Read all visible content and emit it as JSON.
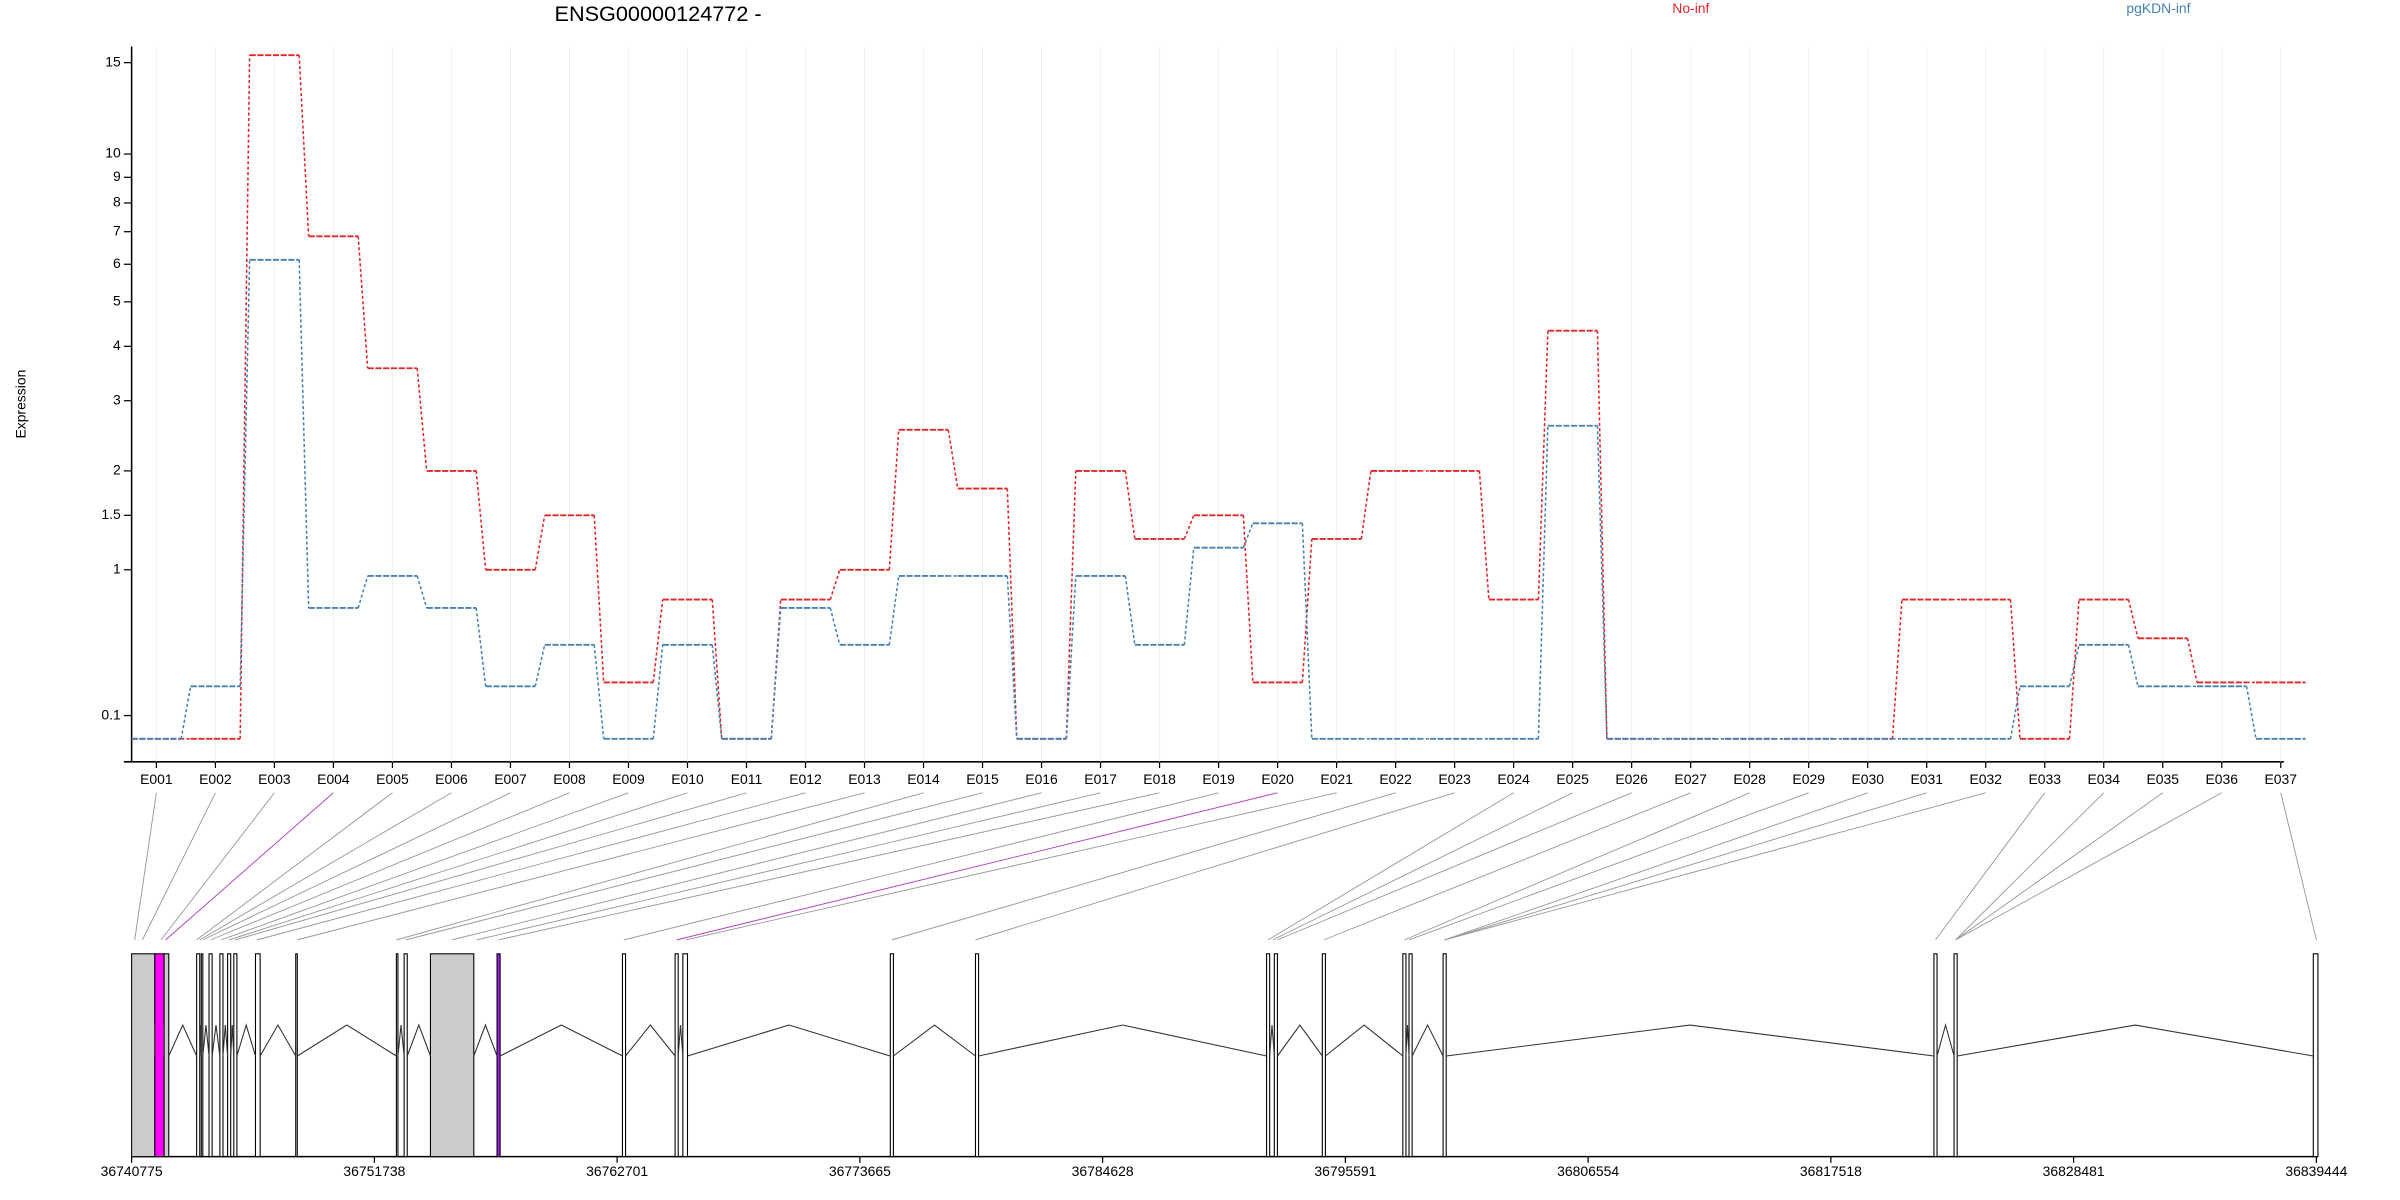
{
  "chart_data": [
    {
      "type": "line",
      "title": "ENSG00000124772 -",
      "y_label": "Expression",
      "yscale": "log1p",
      "grid": true,
      "categories": [
        "E001",
        "E002",
        "E003",
        "E004",
        "E005",
        "E006",
        "E007",
        "E008",
        "E009",
        "E010",
        "E011",
        "E012",
        "E013",
        "E014",
        "E015",
        "E016",
        "E017",
        "E018",
        "E019",
        "E020",
        "E021",
        "E022",
        "E023",
        "E024",
        "E025",
        "E026",
        "E027",
        "E028",
        "E029",
        "E030",
        "E031",
        "E032",
        "E033",
        "E034",
        "E035",
        "E036",
        "E037"
      ],
      "series": [
        {
          "name": "No-inf",
          "color": "#e3262a",
          "values": [
            0,
            0,
            15.5,
            6.85,
            3.57,
            2.0,
            1.0,
            1.5,
            0.26,
            0.77,
            0,
            0.77,
            1.0,
            2.55,
            1.79,
            0,
            2.0,
            1.27,
            1.5,
            0.26,
            1.27,
            2.0,
            2.0,
            0.77,
            4.33,
            0,
            0,
            0,
            0,
            0,
            0.77,
            0.77,
            0,
            0.77,
            0.51,
            0.26,
            0.26
          ]
        },
        {
          "name": "pgKDN-inf",
          "color": "#4682b4",
          "values": [
            0,
            0.24,
            6.13,
            0.71,
            0.95,
            0.71,
            0.24,
            0.47,
            0,
            0.47,
            0,
            0.71,
            0.47,
            0.95,
            0.95,
            0,
            0.95,
            0.47,
            1.19,
            1.42,
            0,
            0,
            0,
            0,
            2.61,
            0,
            0,
            0,
            0,
            0,
            0,
            0,
            0.24,
            0.47,
            0.24,
            0.24,
            0
          ]
        }
      ],
      "ylim": [
        -0.09,
        16.1
      ],
      "yticks": [
        0.1,
        1,
        1.5,
        2,
        3,
        4,
        5,
        6,
        7,
        8,
        9,
        10,
        15
      ]
    },
    {
      "type": "gene-model",
      "xlim": [
        36740775,
        36839444
      ],
      "xticks": [
        36740775,
        36751738,
        36762701,
        36773665,
        36784628,
        36795591,
        36806554,
        36817518,
        36828481,
        36839444
      ]
    }
  ]
}
